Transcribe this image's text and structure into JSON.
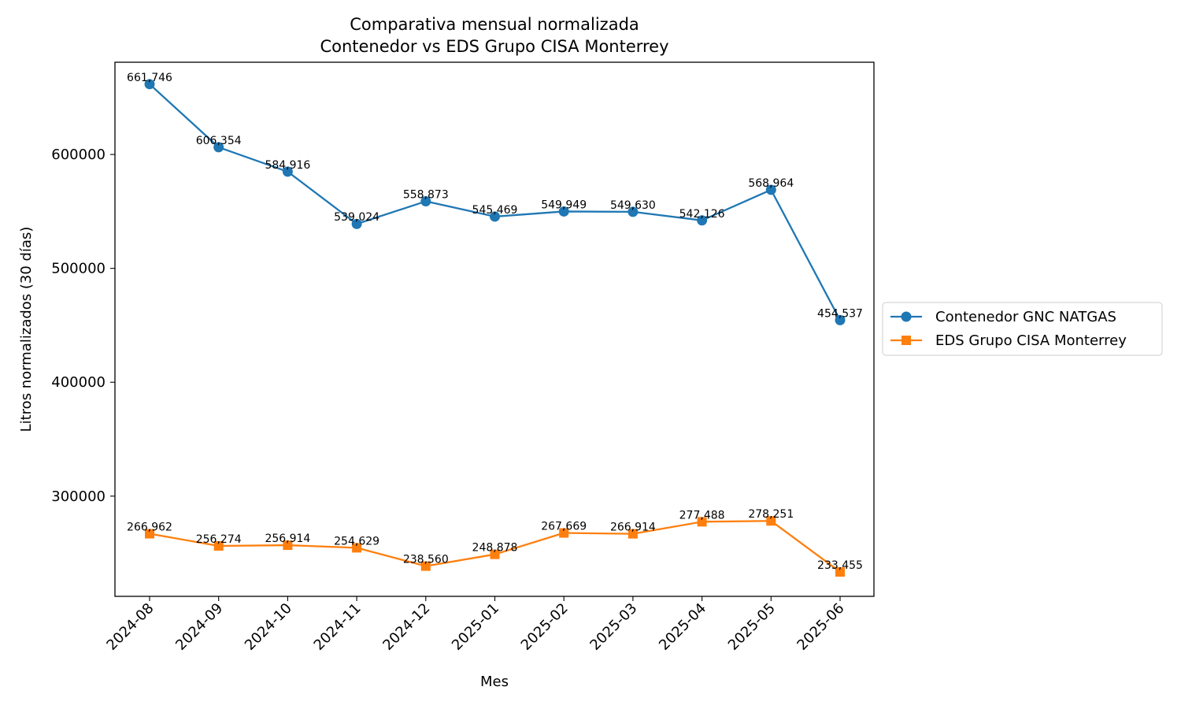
{
  "chart_data": {
    "type": "line",
    "title_lines": [
      "Comparativa mensual normalizada",
      "Contenedor vs EDS Grupo CISA Monterrey"
    ],
    "xlabel": "Mes",
    "ylabel": "Litros normalizados (30 días)",
    "categories": [
      "2024-08",
      "2024-09",
      "2024-10",
      "2024-11",
      "2024-12",
      "2025-01",
      "2025-02",
      "2025-03",
      "2025-04",
      "2025-05",
      "2025-06"
    ],
    "y_ticks": [
      300000,
      400000,
      500000,
      600000
    ],
    "ylim": [
      212000,
      681000
    ],
    "grid": false,
    "legend_position": "outside-right",
    "series": [
      {
        "name": "Contenedor GNC NATGAS",
        "color": "#1f77b4",
        "marker": "circle",
        "values": [
          661746,
          606354,
          584916,
          539024,
          558873,
          545469,
          549949,
          549630,
          542126,
          568964,
          454537
        ],
        "labels": [
          "661,746",
          "606,354",
          "584,916",
          "539,024",
          "558,873",
          "545,469",
          "549,949",
          "549,630",
          "542,126",
          "568,964",
          "454,537"
        ]
      },
      {
        "name": "EDS Grupo CISA Monterrey",
        "color": "#ff7f0e",
        "marker": "square",
        "values": [
          266962,
          256274,
          256914,
          254629,
          238560,
          248878,
          267669,
          266914,
          277488,
          278251,
          233455
        ],
        "labels": [
          "266,962",
          "256,274",
          "256,914",
          "254,629",
          "238,560",
          "248,878",
          "267,669",
          "266,914",
          "277,488",
          "278,251",
          "233,455"
        ]
      }
    ]
  }
}
